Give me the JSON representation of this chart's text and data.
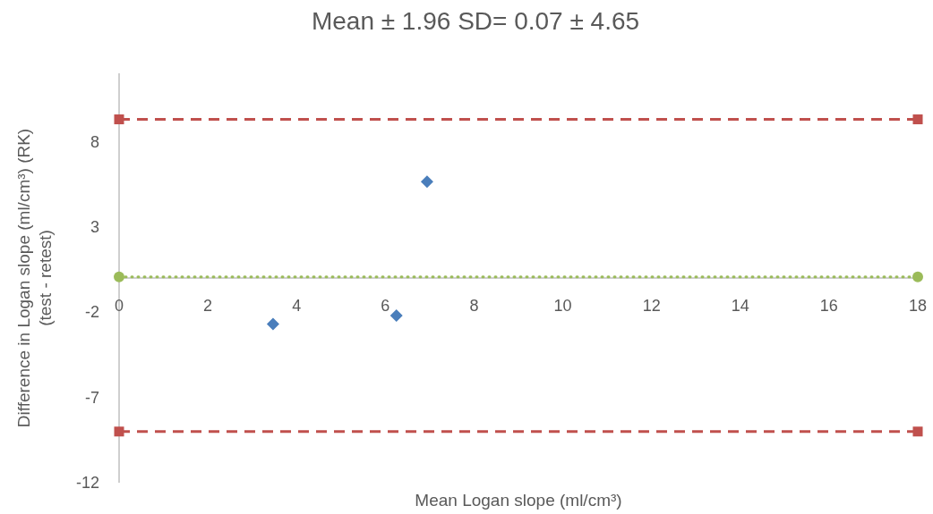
{
  "chart_data": {
    "type": "scatter",
    "title": "Mean ± 1.96 SD= 0.07 ± 4.65",
    "xlabel": "Mean Logan slope (ml/cm³)",
    "ylabel": "Difference in Logan slope (ml/cm³) (RK)\n(test - retest)",
    "xlim": [
      0,
      18
    ],
    "xticks": [
      0,
      2,
      4,
      6,
      8,
      10,
      12,
      14,
      16,
      18
    ],
    "ylim": [
      -12,
      12
    ],
    "yticks": [
      -12,
      -7,
      -2,
      3,
      8
    ],
    "grid": false,
    "series": [
      {
        "marker": "diamond",
        "color": "#4a7ebb",
        "x": [
          3.47,
          6.25,
          6.94
        ],
        "values": [
          -2.7,
          -2.2,
          5.65
        ]
      },
      {
        "type": "line",
        "marker": "square",
        "line_style": "dashed",
        "color": "#c0504d",
        "x": [
          0,
          18
        ],
        "values": [
          9.3,
          9.3
        ]
      },
      {
        "type": "line",
        "marker": "circle",
        "line_style": "dotted",
        "color": "#9bbb59",
        "x": [
          0,
          18
        ],
        "values": [
          0.07,
          0.07
        ]
      },
      {
        "type": "line",
        "marker": "square",
        "line_style": "dashed",
        "color": "#c0504d",
        "x": [
          0,
          18
        ],
        "values": [
          -9.0,
          -9.0
        ]
      }
    ]
  }
}
